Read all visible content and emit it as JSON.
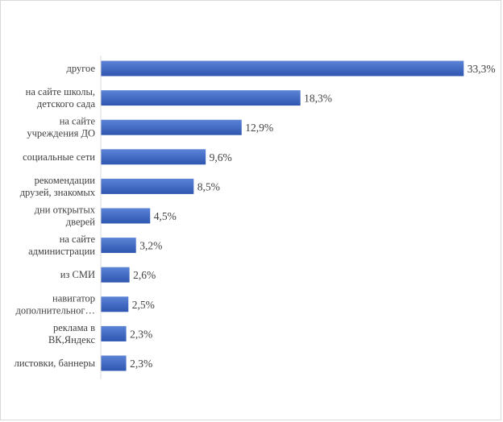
{
  "chart_data": {
    "type": "bar",
    "orientation": "horizontal",
    "title": "",
    "xlabel": "",
    "ylabel": "",
    "categories": [
      [
        "другое"
      ],
      [
        "на сайте школы,",
        "детского сада"
      ],
      [
        "на сайте",
        "учреждения ДО"
      ],
      [
        "социальные сети"
      ],
      [
        "рекомендации",
        "друзей, знакомых"
      ],
      [
        "дни открытых",
        "дверей"
      ],
      [
        "на сайте",
        "администрации"
      ],
      [
        "из СМИ"
      ],
      [
        "навигатор",
        "дополнительног…"
      ],
      [
        "реклама в",
        "ВК,Яндекс"
      ],
      [
        "листовки, баннеры"
      ]
    ],
    "values": [
      33.3,
      18.3,
      12.9,
      9.6,
      8.5,
      4.5,
      3.2,
      2.6,
      2.5,
      2.3,
      2.3
    ],
    "data_labels": [
      "33,3%",
      "18,3%",
      "12,9%",
      "9,6%",
      "8,5%",
      "4,5%",
      "3,2%",
      "2,6%",
      "2,5%",
      "2,3%",
      "2,3%"
    ],
    "unit": "%",
    "xlim": [
      0,
      36.5
    ],
    "grid": false,
    "legend": "none",
    "colors": {
      "bar_light": "#5b83d6",
      "bar_dark": "#2f56b0",
      "axis": "#d9d9d9",
      "text": "#404040"
    }
  }
}
